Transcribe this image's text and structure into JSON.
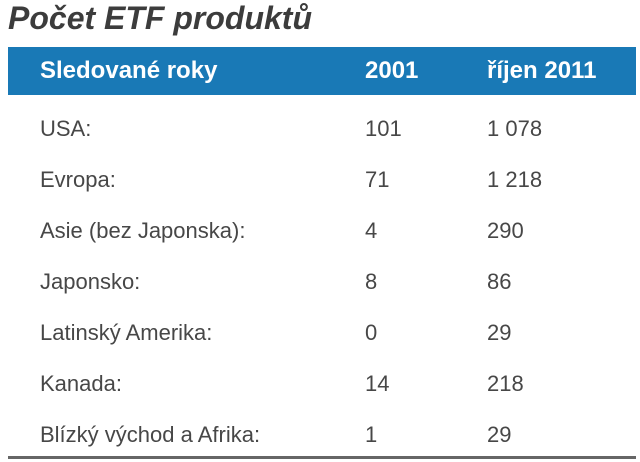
{
  "title": "Počet ETF produktů",
  "table": {
    "headers": {
      "col1": "Sledované roky",
      "col2": "2001",
      "col3": "říjen 2011"
    },
    "rows": [
      {
        "label": "USA:",
        "v2001": "101",
        "v2011": "1 078"
      },
      {
        "label": "Evropa:",
        "v2001": "71",
        "v2011": "1 218"
      },
      {
        "label": "Asie (bez Japonska):",
        "v2001": "4",
        "v2011": "290"
      },
      {
        "label": "Japonsko:",
        "v2001": "8",
        "v2011": "86"
      },
      {
        "label": "Latinský Amerika:",
        "v2001": "0",
        "v2011": "29"
      },
      {
        "label": "Kanada:",
        "v2001": "14",
        "v2011": "218"
      },
      {
        "label": "Blízký východ a Afrika:",
        "v2001": "1",
        "v2011": "29"
      }
    ]
  },
  "colors": {
    "header_bg": "#1979b6",
    "header_text": "#ffffff",
    "title_text": "#3c3c3c",
    "body_text": "#474747",
    "bottom_rule": "#666666"
  },
  "chart_data": {
    "type": "table",
    "title": "Počet ETF produktů",
    "columns": [
      "Sledované roky",
      "2001",
      "říjen 2011"
    ],
    "rows": [
      [
        "USA:",
        101,
        1078
      ],
      [
        "Evropa:",
        71,
        1218
      ],
      [
        "Asie (bez Japonska):",
        4,
        290
      ],
      [
        "Japonsko:",
        8,
        86
      ],
      [
        "Latinský Amerika:",
        0,
        29
      ],
      [
        "Kanada:",
        14,
        218
      ],
      [
        "Blízký východ a Afrika:",
        1,
        29
      ]
    ]
  }
}
